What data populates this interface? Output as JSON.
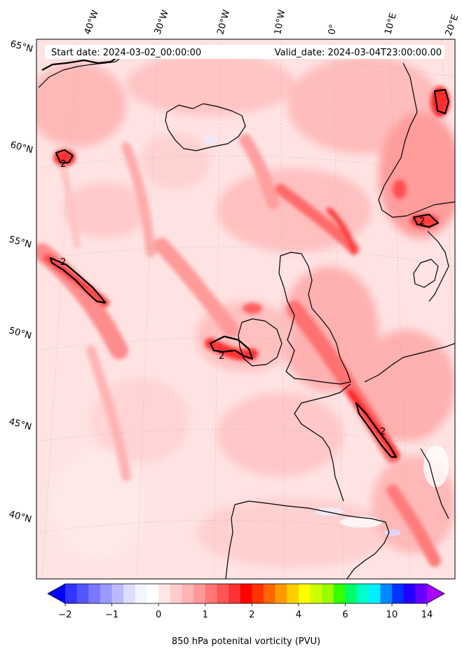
{
  "header": {
    "start_date": "Start date: 2024-03-02_00:00:00",
    "valid_date": "Valid_date: 2024-03-04T23:00:00.00"
  },
  "map": {
    "longitude_labels": [
      "40°W",
      "30°W",
      "20°W",
      "10°W",
      "0°",
      "10°E",
      "20°E"
    ],
    "latitude_labels": [
      "65°N",
      "60°N",
      "55°N",
      "50°N",
      "45°N",
      "40°N"
    ],
    "contour_label": "2"
  },
  "colorbar": {
    "ticks": [
      "−2",
      "−1",
      "0",
      "1",
      "2",
      "4",
      "6",
      "10",
      "14"
    ],
    "label": "850 hPa potenital vorticity (PVU)",
    "colors": [
      "#0000ff",
      "#3333ff",
      "#5555ff",
      "#7777ff",
      "#9999ff",
      "#bbbbff",
      "#ddddff",
      "#f4f4ff",
      "#ffffff",
      "#ffe6e6",
      "#ffcccc",
      "#ffb3b3",
      "#ff9999",
      "#ff7777",
      "#ff5555",
      "#ff3333",
      "#ff0000",
      "#ff3300",
      "#ff6600",
      "#ff9900",
      "#ffcc00",
      "#ffff00",
      "#ccff00",
      "#99ff00",
      "#33ff00",
      "#00ff66",
      "#00ffcc",
      "#00eeff",
      "#0088ff",
      "#0033ff",
      "#2200ff",
      "#6600ff",
      "#aa00ff"
    ]
  }
}
